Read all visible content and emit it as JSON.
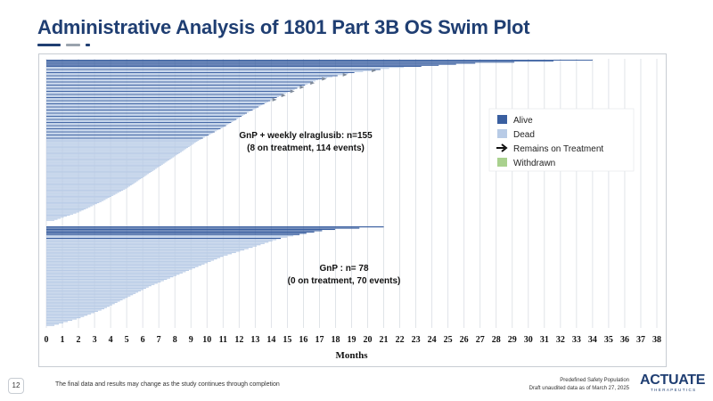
{
  "slide": {
    "title": "Administrative Analysis of 1801 Part 3B OS Swim Plot",
    "page_number": "12",
    "footnote": "The final data and results may change as the study continues through completion",
    "population_note": "Predefined Safety Population",
    "data_date_note": "Draft unaudited data as of March 27, 2025",
    "logo_text": "ACTUATE",
    "logo_subtext": "THERAPEUTICS"
  },
  "colors": {
    "title": "#1f3e72",
    "alive": "#3a5fa0",
    "dead": "#b8cbe6",
    "withdrawn": "#a9d18e",
    "grid": "#d9dde3",
    "dash1": "#1f3e72",
    "dash2": "#9aa3ad",
    "dash3": "#1f3e72"
  },
  "chart_data": {
    "type": "swimmer",
    "xlabel": "Months",
    "xlim": [
      0,
      38
    ],
    "xticks": [
      "0",
      "1",
      "2",
      "3",
      "4",
      "5",
      "6",
      "7",
      "8",
      "9",
      "10",
      "11",
      "12",
      "13",
      "14",
      "15",
      "16",
      "17",
      "18",
      "19",
      "20",
      "21",
      "22",
      "23",
      "24",
      "25",
      "26",
      "27",
      "28",
      "29",
      "30",
      "31",
      "32",
      "33",
      "34",
      "35",
      "36",
      "37",
      "38"
    ],
    "legend": {
      "position": "right",
      "items": [
        {
          "label": "Alive",
          "kind": "alive"
        },
        {
          "label": "Dead",
          "kind": "dead"
        },
        {
          "label": "Remains on Treatment",
          "kind": "arrow"
        },
        {
          "label": "Withdrawn",
          "kind": "withdrawn"
        }
      ]
    },
    "groups": [
      {
        "name": "GnP + weekly elraglusib",
        "label_line1": "GnP + weekly elraglusib: n=155",
        "label_line2": "(8 on treatment, 114 events)",
        "n": 155,
        "on_treatment": 8,
        "events": 114,
        "max_months": 34,
        "curve": [
          [
            0,
            34
          ],
          [
            0.02,
            26.5
          ],
          [
            0.05,
            21.5
          ],
          [
            0.08,
            19
          ],
          [
            0.12,
            17
          ],
          [
            0.18,
            15.5
          ],
          [
            0.25,
            14
          ],
          [
            0.33,
            12.5
          ],
          [
            0.42,
            11
          ],
          [
            0.5,
            9.5
          ],
          [
            0.6,
            8
          ],
          [
            0.7,
            6.5
          ],
          [
            0.8,
            5
          ],
          [
            0.88,
            3.5
          ],
          [
            0.95,
            2
          ],
          [
            1,
            0.5
          ]
        ]
      },
      {
        "name": "GnP",
        "label_line1": "GnP : n= 78",
        "label_line2": "(0 on treatment, 70 events)",
        "n": 78,
        "on_treatment": 0,
        "events": 70,
        "max_months": 21,
        "curve": [
          [
            0,
            21
          ],
          [
            0.03,
            17.5
          ],
          [
            0.07,
            16
          ],
          [
            0.12,
            14.5
          ],
          [
            0.2,
            13
          ],
          [
            0.3,
            11
          ],
          [
            0.4,
            9.5
          ],
          [
            0.5,
            8
          ],
          [
            0.6,
            6.5
          ],
          [
            0.72,
            5
          ],
          [
            0.84,
            3.5
          ],
          [
            0.93,
            2
          ],
          [
            1,
            0.5
          ]
        ]
      }
    ]
  }
}
